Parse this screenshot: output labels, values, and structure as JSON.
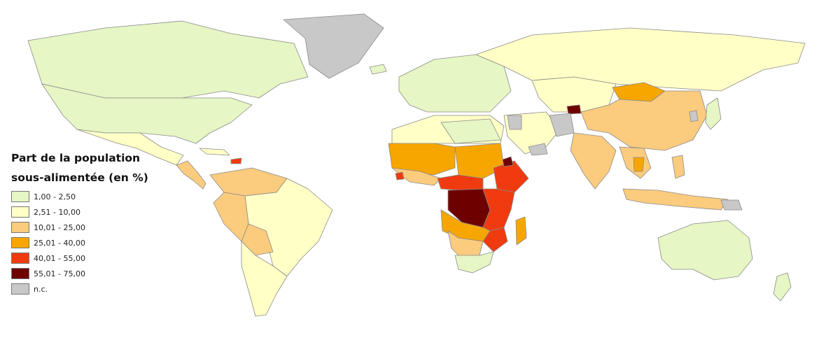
{
  "legend": {
    "title": "Part de la population\nsous-alimentée (en %)",
    "classes": [
      {
        "label": "1,00 - 2,50",
        "color": "#e6f6c4"
      },
      {
        "label": "2,51 - 10,00",
        "color": "#ffffc6"
      },
      {
        "label": "10,01 - 25,00",
        "color": "#fbcb7e"
      },
      {
        "label": "25,01 - 40,00",
        "color": "#f7a600"
      },
      {
        "label": "40,01 - 55,00",
        "color": "#ef3b0f"
      },
      {
        "label": "55,01 - 75,00",
        "color": "#6e0000"
      },
      {
        "label": "n.c.",
        "color": "#c8c8c8"
      }
    ]
  }
}
